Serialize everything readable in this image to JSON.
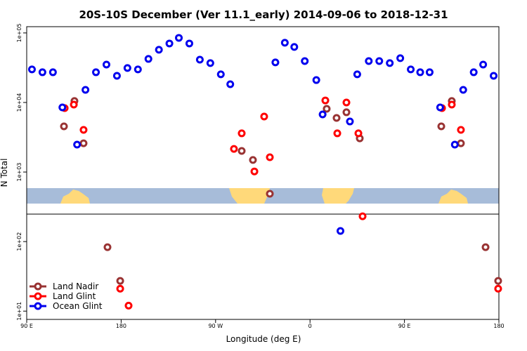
{
  "chart_data": {
    "type": "scatter",
    "title": "20S-10S December (Ver 11.1_early)   2014-09-06 to 2018-12-31",
    "x_label": "Longitude (deg E)",
    "y_label": "N Total",
    "log_y": true,
    "legend": "lower left",
    "xlim": [
      90,
      540
    ],
    "xticks": [
      {
        "value": 90,
        "label": "90 E"
      },
      180,
      {
        "value": 270,
        "label": "90 W"
      },
      {
        "value": 360,
        "label": "0"
      },
      {
        "value": 450,
        "label": "90 E"
      },
      {
        "value": 540,
        "label": "180"
      }
    ],
    "ylim": [
      7.6,
      123000
    ],
    "yticks": [
      {
        "value": 100000,
        "label": "1e+05"
      },
      {
        "value": 10000,
        "label": "1e+04"
      },
      {
        "value": 1000,
        "label": "1e+03"
      },
      {
        "value": 100,
        "label": "1e+02"
      },
      {
        "value": 10,
        "label": "1e+01"
      }
    ],
    "series": [
      {
        "name": "Land Nadir",
        "color": "#993333",
        "x": [
          125.5,
          135.5,
          144.2,
          167,
          179.1,
          294.9,
          305.6,
          321.7,
          375.9,
          385.3,
          394.7,
          407.4,
          485.1,
          495.1,
          503.8,
          527.3,
          539.3
        ],
        "values": [
          4540,
          10500,
          2590,
          83,
          27.2,
          2010,
          1490,
          487,
          8110,
          6000,
          7230,
          3050,
          4540,
          10500,
          2590,
          83,
          27.2
        ]
      },
      {
        "name": "Land Glint",
        "color": "#ff0000",
        "x": [
          126.2,
          134.9,
          144.2,
          179.1,
          187.1,
          287.5,
          294.9,
          307,
          316.3,
          321.7,
          374.6,
          386,
          394.7,
          406.1,
          410.1,
          485.8,
          495.1,
          503.8,
          539.3
        ],
        "values": [
          8300,
          9330,
          4040,
          21,
          12,
          2150,
          3600,
          1020,
          6280,
          1630,
          10700,
          3600,
          10000,
          3600,
          231,
          8300,
          9330,
          4040,
          21
        ]
      },
      {
        "name": "Ocean Glint",
        "color": "#0000ee",
        "x": [
          95,
          105,
          115,
          124,
          138,
          146,
          156,
          166,
          176,
          186,
          196,
          206,
          216,
          226,
          235,
          245,
          255,
          265,
          275,
          284,
          327,
          336,
          345,
          355,
          366,
          372,
          389,
          398,
          405,
          416,
          426,
          436,
          446,
          456,
          465,
          474,
          484,
          498,
          506,
          516,
          525,
          535
        ],
        "values": [
          29900,
          27200,
          27200,
          8490,
          2480,
          15200,
          27200,
          35100,
          24200,
          31300,
          29900,
          42300,
          57300,
          70500,
          84900,
          70500,
          41300,
          36800,
          25400,
          18300,
          37700,
          72300,
          62800,
          39400,
          21000,
          6730,
          142,
          5330,
          25400,
          39400,
          39400,
          36800,
          43300,
          29900,
          27200,
          27200,
          8490,
          2480,
          15200,
          27200,
          35100,
          24200
        ]
      }
    ]
  }
}
